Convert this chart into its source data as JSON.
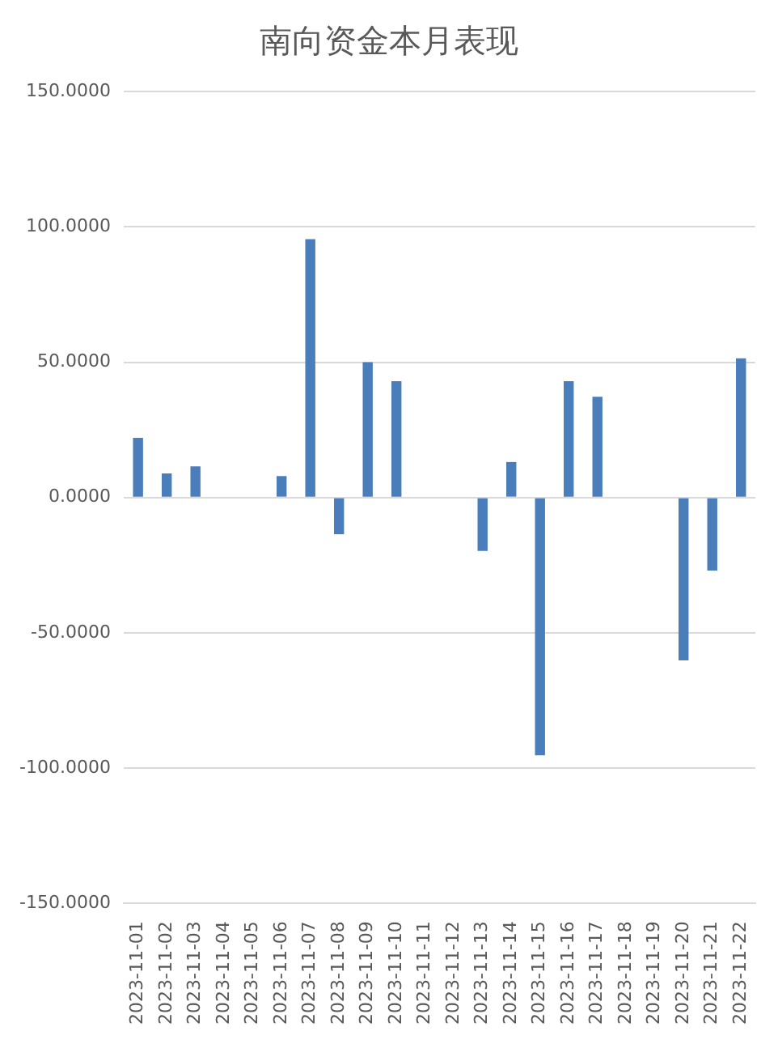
{
  "chart_data": {
    "type": "bar",
    "title": "南向资金本月表现",
    "categories": [
      "2023-11-01",
      "2023-11-02",
      "2023-11-03",
      "2023-11-04",
      "2023-11-05",
      "2023-11-06",
      "2023-11-07",
      "2023-11-08",
      "2023-11-09",
      "2023-11-10",
      "2023-11-11",
      "2023-11-12",
      "2023-11-13",
      "2023-11-14",
      "2023-11-15",
      "2023-11-16",
      "2023-11-17",
      "2023-11-18",
      "2023-11-19",
      "2023-11-20",
      "2023-11-21",
      "2023-11-22"
    ],
    "values": [
      22.0,
      8.9,
      11.5,
      0,
      0,
      7.9,
      95.5,
      -13.6,
      50.0,
      43.0,
      0,
      0,
      -19.8,
      13.1,
      -95.3,
      43.0,
      37.2,
      0,
      0,
      -60.2,
      -27.0,
      51.4
    ],
    "color": "#4a7ebb",
    "ylim": [
      -150,
      150
    ],
    "yticks": [
      {
        "value": -150,
        "label": "-150.0000"
      },
      {
        "value": -100,
        "label": "-100.0000"
      },
      {
        "value": -50,
        "label": "-50.0000"
      },
      {
        "value": 0,
        "label": "0.0000"
      },
      {
        "value": 50,
        "label": "50.0000"
      },
      {
        "value": 100,
        "label": "100.0000"
      },
      {
        "value": 150,
        "label": "150.0000"
      }
    ],
    "grid": "y",
    "legend": false
  }
}
